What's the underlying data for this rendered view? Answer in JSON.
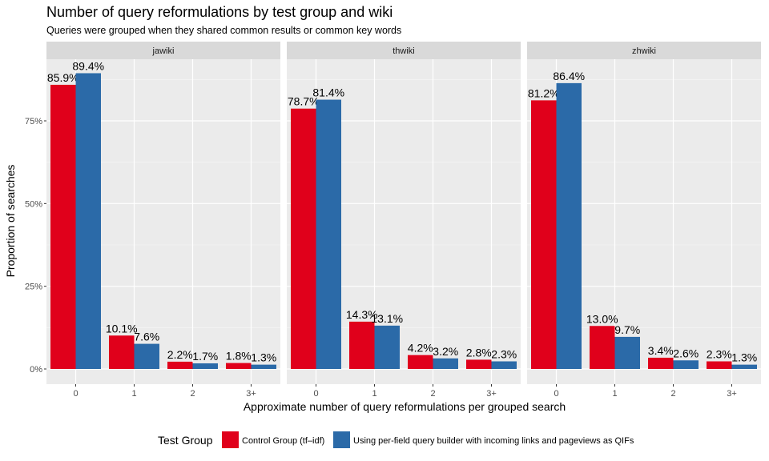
{
  "chart_data": {
    "type": "bar",
    "title": "Number of query reformulations by test group and wiki",
    "subtitle": "Queries were grouped when they shared common results or common key words",
    "xlabel": "Approximate number of query reformulations per grouped search",
    "ylabel": "Proportion of searches",
    "ylim": [
      0,
      0.9
    ],
    "yticks": [
      0,
      0.25,
      0.5,
      0.75
    ],
    "ytick_labels": [
      "0%",
      "25%",
      "50%",
      "75%"
    ],
    "categories": [
      "0",
      "1",
      "2",
      "3+"
    ],
    "legend": {
      "title": "Test Group",
      "position": "bottom",
      "entries": [
        {
          "name": "Control Group (tf–idf)",
          "color": "#e0001b"
        },
        {
          "name": "Using per-field query builder with incoming links and pageviews as QIFs",
          "color": "#2b6aa8"
        }
      ]
    },
    "panels": [
      {
        "name": "jawiki",
        "series": [
          {
            "name": "Control Group (tf–idf)",
            "values": [
              0.859,
              0.101,
              0.022,
              0.018
            ],
            "labels": [
              "85.9%",
              "10.1%",
              "2.2%",
              "1.8%"
            ]
          },
          {
            "name": "Using per-field query builder with incoming links and pageviews as QIFs",
            "values": [
              0.894,
              0.076,
              0.017,
              0.013
            ],
            "labels": [
              "89.4%",
              "7.6%",
              "1.7%",
              "1.3%"
            ]
          }
        ]
      },
      {
        "name": "thwiki",
        "series": [
          {
            "name": "Control Group (tf–idf)",
            "values": [
              0.787,
              0.143,
              0.042,
              0.028
            ],
            "labels": [
              "78.7%",
              "14.3%",
              "4.2%",
              "2.8%"
            ]
          },
          {
            "name": "Using per-field query builder with incoming links and pageviews as QIFs",
            "values": [
              0.814,
              0.131,
              0.032,
              0.023
            ],
            "labels": [
              "81.4%",
              "13.1%",
              "3.2%",
              "2.3%"
            ]
          }
        ]
      },
      {
        "name": "zhwiki",
        "series": [
          {
            "name": "Control Group (tf–idf)",
            "values": [
              0.812,
              0.13,
              0.034,
              0.023
            ],
            "labels": [
              "81.2%",
              "13.0%",
              "3.4%",
              "2.3%"
            ]
          },
          {
            "name": "Using per-field query builder with incoming links and pageviews as QIFs",
            "values": [
              0.864,
              0.097,
              0.026,
              0.013
            ],
            "labels": [
              "86.4%",
              "9.7%",
              "2.6%",
              "1.3%"
            ]
          }
        ]
      }
    ]
  }
}
